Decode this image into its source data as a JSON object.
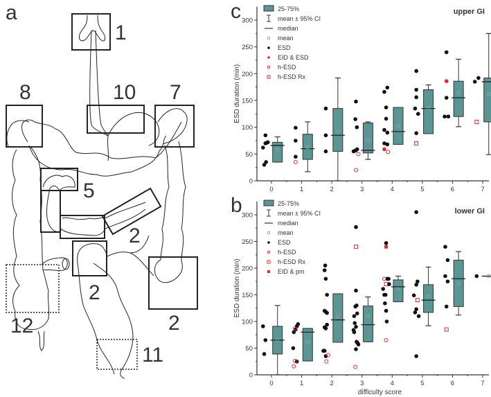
{
  "figure": {
    "panel_labels": {
      "a": "a",
      "b": "b",
      "c": "c"
    },
    "diagram": {
      "regions": [
        {
          "label": "1",
          "style": "solid",
          "name": "pharynx-esophagus-entry"
        },
        {
          "label": "10",
          "style": "solid",
          "name": "stomach"
        },
        {
          "label": "8",
          "style": "solid",
          "name": "hepatic-flexure"
        },
        {
          "label": "7",
          "style": "solid",
          "name": "splenic-flexure"
        },
        {
          "label": "5",
          "style": "solid",
          "name": "duodenal-bulb"
        },
        {
          "label": "2",
          "style": "solid",
          "name": "transverse-colon-left"
        },
        {
          "label": "2",
          "style": "solid",
          "name": "sigmoid"
        },
        {
          "label": "2",
          "style": "solid",
          "name": "descending-colon"
        },
        {
          "label": "12",
          "style": "dotted",
          "name": "cecum"
        },
        {
          "label": "11",
          "style": "dotted",
          "name": "rectum"
        }
      ]
    }
  },
  "chart_data": [
    {
      "type": "box+scatter",
      "panel": "c",
      "title": "upper GI",
      "xlabel": "",
      "ylabel": "ESD duration (min)",
      "ylim": [
        0,
        325
      ],
      "yticks": [
        0,
        50,
        100,
        150,
        200,
        250,
        300
      ],
      "categories": [
        "0",
        "1",
        "2",
        "3",
        "4",
        "5",
        "6",
        "7"
      ],
      "legend": [
        {
          "key": "box",
          "label": "25-75%"
        },
        {
          "key": "ci",
          "label": "mean ± 95% CI"
        },
        {
          "key": "median",
          "label": "median"
        },
        {
          "key": "mean",
          "label": "mean"
        },
        {
          "key": "esd",
          "label": "ESD"
        },
        {
          "key": "eid_esd",
          "label": "EID & ESD"
        },
        {
          "key": "hesd",
          "label": "h-ESD"
        },
        {
          "key": "hesdrx",
          "label": "h-ESD Rx"
        }
      ],
      "legend_position": "top-left",
      "colors": {
        "box": "#5b9594",
        "red": "#e8262a",
        "black": "#111111"
      },
      "boxes": [
        {
          "x": 0,
          "q1": 35,
          "q3": 72,
          "median": 66,
          "mean": 59,
          "ci_low": 35,
          "ci_high": 82
        },
        {
          "x": 1,
          "q1": 40,
          "q3": 87,
          "median": 60,
          "mean": 63,
          "ci_low": 17,
          "ci_high": 110
        },
        {
          "x": 2,
          "q1": 55,
          "q3": 135,
          "median": 85,
          "mean": 92,
          "ci_low": 0,
          "ci_high": 192
        },
        {
          "x": 3,
          "q1": 52,
          "q3": 108,
          "median": 57,
          "mean": 75,
          "ci_low": 40,
          "ci_high": 110
        },
        {
          "x": 4,
          "q1": 68,
          "q3": 137,
          "median": 92,
          "mean": 103,
          "ci_low": 70,
          "ci_high": 136
        },
        {
          "x": 5,
          "q1": 88,
          "q3": 170,
          "median": 135,
          "mean": 136,
          "ci_low": 90,
          "ci_high": 179
        },
        {
          "x": 6,
          "q1": 120,
          "q3": 186,
          "median": 155,
          "mean": 164,
          "ci_low": 101,
          "ci_high": 227
        },
        {
          "x": 7,
          "q1": 110,
          "q3": 192,
          "median": 185,
          "mean": 162,
          "ci_low": 49,
          "ci_high": 275
        }
      ],
      "points": [
        {
          "x": 0,
          "y": 62,
          "type": "esd",
          "dx": -0.28
        },
        {
          "x": 0,
          "y": 85,
          "type": "esd",
          "dx": -0.2
        },
        {
          "x": 0,
          "y": 70,
          "type": "esd",
          "dx": -0.2
        },
        {
          "x": 0,
          "y": 71,
          "type": "esd",
          "dx": -0.16
        },
        {
          "x": 0,
          "y": 72,
          "type": "esd",
          "dx": -0.12
        },
        {
          "x": 0,
          "y": 30,
          "type": "esd",
          "dx": -0.24
        },
        {
          "x": 0,
          "y": 35,
          "type": "esd",
          "dx": -0.18
        },
        {
          "x": 1,
          "y": 99,
          "type": "esd",
          "dx": -0.2
        },
        {
          "x": 1,
          "y": 75,
          "type": "esd",
          "dx": -0.2
        },
        {
          "x": 1,
          "y": 45,
          "type": "esd",
          "dx": -0.2
        },
        {
          "x": 1,
          "y": 35,
          "type": "hesd",
          "dx": -0.2
        },
        {
          "x": 2,
          "y": 135,
          "type": "esd",
          "dx": -0.2
        },
        {
          "x": 2,
          "y": 85,
          "type": "esd",
          "dx": -0.2
        },
        {
          "x": 2,
          "y": 55,
          "type": "esd",
          "dx": -0.2
        },
        {
          "x": 3,
          "y": 148,
          "type": "esd",
          "dx": -0.2
        },
        {
          "x": 3,
          "y": 115,
          "type": "esd",
          "dx": -0.22
        },
        {
          "x": 3,
          "y": 100,
          "type": "esd",
          "dx": -0.17
        },
        {
          "x": 3,
          "y": 55,
          "type": "esd",
          "dx": -0.28
        },
        {
          "x": 3,
          "y": 56,
          "type": "esd",
          "dx": -0.24
        },
        {
          "x": 3,
          "y": 57,
          "type": "esd",
          "dx": -0.2
        },
        {
          "x": 3,
          "y": 59,
          "type": "esd",
          "dx": -0.16
        },
        {
          "x": 3,
          "y": 50,
          "type": "hesd",
          "dx": -0.12
        },
        {
          "x": 3,
          "y": 20,
          "type": "hesd",
          "dx": -0.2
        },
        {
          "x": 4,
          "y": 166,
          "type": "esd",
          "dx": -0.26
        },
        {
          "x": 4,
          "y": 174,
          "type": "esd",
          "dx": -0.16
        },
        {
          "x": 4,
          "y": 137,
          "type": "esd",
          "dx": -0.2
        },
        {
          "x": 4,
          "y": 116,
          "type": "esd",
          "dx": -0.2
        },
        {
          "x": 4,
          "y": 95,
          "type": "esd",
          "dx": -0.26
        },
        {
          "x": 4,
          "y": 90,
          "type": "esd",
          "dx": -0.16
        },
        {
          "x": 4,
          "y": 70,
          "type": "esd",
          "dx": -0.26
        },
        {
          "x": 4,
          "y": 68,
          "type": "esd",
          "dx": -0.16
        },
        {
          "x": 4,
          "y": 59,
          "type": "eid_esd",
          "dx": -0.26
        },
        {
          "x": 4,
          "y": 54,
          "type": "hesd",
          "dx": -0.14
        },
        {
          "x": 5,
          "y": 205,
          "type": "esd",
          "dx": -0.2
        },
        {
          "x": 5,
          "y": 170,
          "type": "esd",
          "dx": -0.2
        },
        {
          "x": 5,
          "y": 156,
          "type": "esd",
          "dx": -0.2
        },
        {
          "x": 5,
          "y": 135,
          "type": "esd",
          "dx": -0.24
        },
        {
          "x": 5,
          "y": 125,
          "type": "esd",
          "dx": -0.14
        },
        {
          "x": 5,
          "y": 89,
          "type": "esd",
          "dx": -0.2
        },
        {
          "x": 5,
          "y": 70,
          "type": "hesdrx",
          "dx": -0.2
        },
        {
          "x": 6,
          "y": 240,
          "type": "esd",
          "dx": -0.2
        },
        {
          "x": 6,
          "y": 186,
          "type": "eid_esd",
          "dx": -0.2
        },
        {
          "x": 6,
          "y": 155,
          "type": "esd",
          "dx": -0.2
        },
        {
          "x": 6,
          "y": 120,
          "type": "esd",
          "dx": -0.26
        },
        {
          "x": 6,
          "y": 120,
          "type": "esd",
          "dx": -0.14
        },
        {
          "x": 7,
          "y": 185,
          "type": "esd",
          "dx": -0.26
        },
        {
          "x": 7,
          "y": 192,
          "type": "esd",
          "dx": -0.14
        },
        {
          "x": 7,
          "y": 110,
          "type": "hesdrx",
          "dx": -0.2
        }
      ]
    },
    {
      "type": "box+scatter",
      "panel": "b",
      "title": "lower GI",
      "xlabel": "difficulty score",
      "ylabel": "ESD duration (min)",
      "ylim": [
        0,
        325
      ],
      "yticks": [
        0,
        50,
        100,
        150,
        200,
        250,
        300
      ],
      "categories": [
        "0",
        "1",
        "2",
        "3",
        "4",
        "5",
        "6",
        "7"
      ],
      "legend": [
        {
          "key": "box",
          "label": "25-75%"
        },
        {
          "key": "ci",
          "label": "mean ± 95% CI"
        },
        {
          "key": "median",
          "label": "median"
        },
        {
          "key": "mean",
          "label": "mean"
        },
        {
          "key": "esd",
          "label": "ESD"
        },
        {
          "key": "hesd",
          "label": "h-ESD"
        },
        {
          "key": "hesdrx",
          "label": "h-ESD Rx"
        },
        {
          "key": "eid_pm",
          "label": "EID & pm"
        }
      ],
      "legend_position": "top-left",
      "colors": {
        "box": "#5b9594",
        "red": "#e8262a",
        "black": "#111111"
      },
      "boxes": [
        {
          "x": 0,
          "q1": 39,
          "q3": 91,
          "median": 65,
          "mean": 65,
          "ci_low": 0,
          "ci_high": 130
        },
        {
          "x": 1,
          "q1": 26,
          "q3": 87,
          "median": 80,
          "mean": 62,
          "ci_low": 26,
          "ci_high": 87
        },
        {
          "x": 2,
          "q1": 61,
          "q3": 152,
          "median": 103,
          "mean": 110,
          "ci_low": 82,
          "ci_high": 140
        },
        {
          "x": 3,
          "q1": 62,
          "q3": 129,
          "median": 94,
          "mean": 110,
          "ci_low": 62,
          "ci_high": 146
        },
        {
          "x": 4,
          "q1": 137,
          "q3": 178,
          "median": 165,
          "mean": 161,
          "ci_low": 137,
          "ci_high": 185
        },
        {
          "x": 5,
          "q1": 117,
          "q3": 169,
          "median": 140,
          "mean": 147,
          "ci_low": 92,
          "ci_high": 202
        },
        {
          "x": 6,
          "q1": 128,
          "q3": 215,
          "median": 180,
          "mean": 171,
          "ci_low": 112,
          "ci_high": 231
        },
        {
          "x": 7,
          "q1": 185,
          "q3": 185,
          "median": 185,
          "mean": 185,
          "ci_low": 185,
          "ci_high": 185
        }
      ],
      "points": [
        {
          "x": 0,
          "y": 91,
          "type": "esd",
          "dx": -0.28
        },
        {
          "x": 0,
          "y": 65,
          "type": "esd",
          "dx": -0.2
        },
        {
          "x": 0,
          "y": 39,
          "type": "esd",
          "dx": -0.24
        },
        {
          "x": 1,
          "y": 80,
          "type": "esd",
          "dx": -0.26
        },
        {
          "x": 1,
          "y": 85,
          "type": "esd",
          "dx": -0.2
        },
        {
          "x": 1,
          "y": 91,
          "type": "esd",
          "dx": -0.16
        },
        {
          "x": 1,
          "y": 95,
          "type": "esd",
          "dx": -0.12
        },
        {
          "x": 1,
          "y": 50,
          "type": "esd",
          "dx": -0.28
        },
        {
          "x": 1,
          "y": 25,
          "type": "esd",
          "dx": -0.16
        },
        {
          "x": 1,
          "y": 87,
          "type": "hesd",
          "dx": -0.22
        },
        {
          "x": 1,
          "y": 26,
          "type": "hesd",
          "dx": -0.22
        },
        {
          "x": 1,
          "y": 16,
          "type": "hesd",
          "dx": -0.26
        },
        {
          "x": 2,
          "y": 205,
          "type": "esd",
          "dx": -0.22
        },
        {
          "x": 2,
          "y": 196,
          "type": "esd",
          "dx": -0.24
        },
        {
          "x": 2,
          "y": 180,
          "type": "esd",
          "dx": -0.2
        },
        {
          "x": 2,
          "y": 150,
          "type": "esd",
          "dx": -0.16
        },
        {
          "x": 2,
          "y": 120,
          "type": "esd",
          "dx": -0.24
        },
        {
          "x": 2,
          "y": 118,
          "type": "esd",
          "dx": -0.2
        },
        {
          "x": 2,
          "y": 116,
          "type": "esd",
          "dx": -0.16
        },
        {
          "x": 2,
          "y": 94,
          "type": "esd",
          "dx": -0.16
        },
        {
          "x": 2,
          "y": 89,
          "type": "esd",
          "dx": -0.24
        },
        {
          "x": 2,
          "y": 87,
          "type": "esd",
          "dx": -0.2
        },
        {
          "x": 2,
          "y": 45,
          "type": "esd",
          "dx": -0.28
        },
        {
          "x": 2,
          "y": 45,
          "type": "esd",
          "dx": -0.24
        },
        {
          "x": 2,
          "y": 35,
          "type": "esd",
          "dx": -0.2
        },
        {
          "x": 2,
          "y": 37,
          "type": "hesd",
          "dx": -0.12
        },
        {
          "x": 2,
          "y": 25,
          "type": "hesd",
          "dx": -0.18
        },
        {
          "x": 3,
          "y": 277,
          "type": "esd",
          "dx": -0.2
        },
        {
          "x": 3,
          "y": 240,
          "type": "hesdrx",
          "dx": -0.2
        },
        {
          "x": 3,
          "y": 158,
          "type": "esd",
          "dx": -0.2
        },
        {
          "x": 3,
          "y": 128,
          "type": "esd",
          "dx": -0.22
        },
        {
          "x": 3,
          "y": 130,
          "type": "esd",
          "dx": -0.18
        },
        {
          "x": 3,
          "y": 115,
          "type": "esd",
          "dx": -0.16
        },
        {
          "x": 3,
          "y": 110,
          "type": "esd",
          "dx": -0.26
        },
        {
          "x": 3,
          "y": 97,
          "type": "esd",
          "dx": -0.24
        },
        {
          "x": 3,
          "y": 90,
          "type": "esd",
          "dx": -0.2
        },
        {
          "x": 3,
          "y": 84,
          "type": "esd",
          "dx": -0.28
        },
        {
          "x": 3,
          "y": 80,
          "type": "esd",
          "dx": -0.26
        },
        {
          "x": 3,
          "y": 62,
          "type": "esd",
          "dx": -0.18
        },
        {
          "x": 3,
          "y": 60,
          "type": "esd",
          "dx": -0.15
        },
        {
          "x": 3,
          "y": 57,
          "type": "esd",
          "dx": -0.12
        },
        {
          "x": 3,
          "y": 48,
          "type": "esd",
          "dx": -0.2
        },
        {
          "x": 3,
          "y": 15,
          "type": "hesd",
          "dx": -0.22
        },
        {
          "x": 4,
          "y": 247,
          "type": "esd",
          "dx": -0.2
        },
        {
          "x": 4,
          "y": 240,
          "type": "eid_pm",
          "dx": -0.2
        },
        {
          "x": 4,
          "y": 180,
          "type": "hesd",
          "dx": -0.26
        },
        {
          "x": 4,
          "y": 180,
          "type": "esd",
          "dx": -0.16
        },
        {
          "x": 4,
          "y": 180,
          "type": "esd",
          "dx": -0.12
        },
        {
          "x": 4,
          "y": 170,
          "type": "hesdrx",
          "dx": -0.2
        },
        {
          "x": 4,
          "y": 170,
          "type": "esd",
          "dx": -0.1
        },
        {
          "x": 4,
          "y": 161,
          "type": "esd",
          "dx": -0.3
        },
        {
          "x": 4,
          "y": 150,
          "type": "esd",
          "dx": -0.26
        },
        {
          "x": 4,
          "y": 150,
          "type": "esd",
          "dx": -0.22
        },
        {
          "x": 4,
          "y": 134,
          "type": "esd",
          "dx": -0.24
        },
        {
          "x": 4,
          "y": 120,
          "type": "esd",
          "dx": -0.2
        },
        {
          "x": 4,
          "y": 100,
          "type": "esd",
          "dx": -0.18
        },
        {
          "x": 4,
          "y": 65,
          "type": "hesd",
          "dx": -0.2
        },
        {
          "x": 5,
          "y": 305,
          "type": "esd",
          "dx": -0.2
        },
        {
          "x": 5,
          "y": 175,
          "type": "esd",
          "dx": -0.16
        },
        {
          "x": 5,
          "y": 169,
          "type": "esd",
          "dx": -0.2
        },
        {
          "x": 5,
          "y": 149,
          "type": "esd",
          "dx": -0.28
        },
        {
          "x": 5,
          "y": 140,
          "type": "hesdrx",
          "dx": -0.16
        },
        {
          "x": 5,
          "y": 123,
          "type": "esd",
          "dx": -0.2
        },
        {
          "x": 5,
          "y": 117,
          "type": "esd",
          "dx": -0.24
        },
        {
          "x": 5,
          "y": 110,
          "type": "esd",
          "dx": -0.12
        },
        {
          "x": 5,
          "y": 35,
          "type": "esd",
          "dx": -0.2
        },
        {
          "x": 6,
          "y": 240,
          "type": "esd",
          "dx": -0.24
        },
        {
          "x": 6,
          "y": 215,
          "type": "esd",
          "dx": -0.16
        },
        {
          "x": 6,
          "y": 185,
          "type": "esd",
          "dx": -0.24
        },
        {
          "x": 6,
          "y": 175,
          "type": "esd",
          "dx": -0.16
        },
        {
          "x": 6,
          "y": 128,
          "type": "esd",
          "dx": -0.2
        },
        {
          "x": 6,
          "y": 85,
          "type": "hesdrx",
          "dx": -0.2
        },
        {
          "x": 7,
          "y": 185,
          "type": "esd",
          "dx": -0.2
        }
      ]
    }
  ]
}
